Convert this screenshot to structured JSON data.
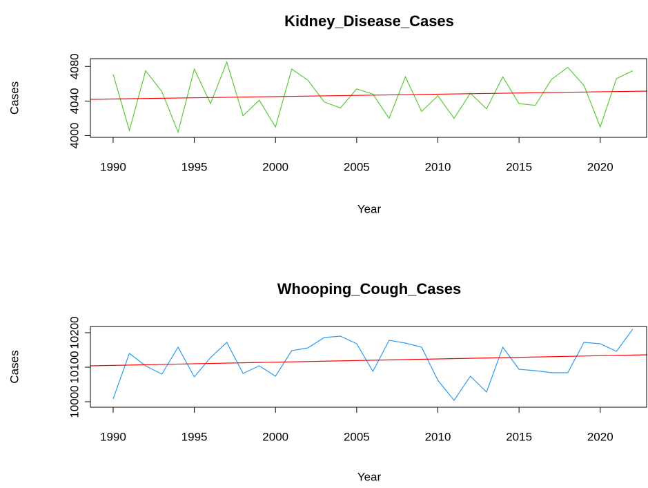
{
  "chart_data": [
    {
      "type": "line",
      "title": "Kidney_Disease_Cases",
      "xlabel": "Year",
      "ylabel": "Cases",
      "x": [
        1990,
        1991,
        1992,
        1993,
        1994,
        1995,
        1996,
        1997,
        1998,
        1999,
        2000,
        2001,
        2002,
        2003,
        2004,
        2005,
        2006,
        2007,
        2008,
        2009,
        2010,
        2011,
        2012,
        2013,
        2014,
        2015,
        2016,
        2017,
        2018,
        2019,
        2020,
        2021,
        2022
      ],
      "series": [
        {
          "color": "#5cc83a",
          "values": [
            4071,
            4006,
            4075,
            4051,
            4004,
            4077,
            4037,
            4085,
            4023,
            4041,
            4010,
            4077,
            4064,
            4039,
            4032,
            4054,
            4048,
            4020,
            4068,
            4028,
            4046,
            4020,
            4049,
            4031,
            4068,
            4037,
            4035,
            4065,
            4079,
            4058,
            4010,
            4066,
            4075
          ]
        }
      ],
      "trend": {
        "color": "#ff0000",
        "x": [
          1988.6,
          2022.9
        ],
        "values": [
          4042,
          4051.5
        ]
      },
      "xlim": [
        1988.6,
        2022.9
      ],
      "xticks": [
        1990,
        1995,
        2000,
        2005,
        2010,
        2015,
        2020
      ],
      "ylim": [
        3998,
        4089
      ],
      "yticks": [
        4000,
        4040,
        4080
      ]
    },
    {
      "type": "line",
      "title": "Whooping_Cough_Cases",
      "xlabel": "Year",
      "ylabel": "Cases",
      "x": [
        1990,
        1991,
        1992,
        1993,
        1994,
        1995,
        1996,
        1997,
        1998,
        1999,
        2000,
        2001,
        2002,
        2003,
        2004,
        2005,
        2006,
        2007,
        2008,
        2009,
        2010,
        2011,
        2012,
        2013,
        2014,
        2015,
        2016,
        2017,
        2018,
        2019,
        2020,
        2021,
        2022
      ],
      "series": [
        {
          "color": "#2b9bea",
          "values": [
            10008,
            10140,
            10104,
            10080,
            10158,
            10072,
            10128,
            10172,
            10082,
            10104,
            10074,
            10148,
            10156,
            10186,
            10190,
            10168,
            10088,
            10178,
            10170,
            10158,
            10062,
            10004,
            10074,
            10028,
            10158,
            10094,
            10090,
            10084,
            10084,
            10172,
            10168,
            10146,
            10210
          ]
        }
      ],
      "trend": {
        "color": "#ff0000",
        "x": [
          1988.6,
          2022.9
        ],
        "values": [
          10104,
          10136
        ]
      },
      "xlim": [
        1988.6,
        2022.9
      ],
      "xticks": [
        1990,
        1995,
        2000,
        2005,
        2010,
        2015,
        2020
      ],
      "ylim": [
        9984,
        10218
      ],
      "yticks": [
        10000,
        10100,
        10200
      ]
    }
  ]
}
